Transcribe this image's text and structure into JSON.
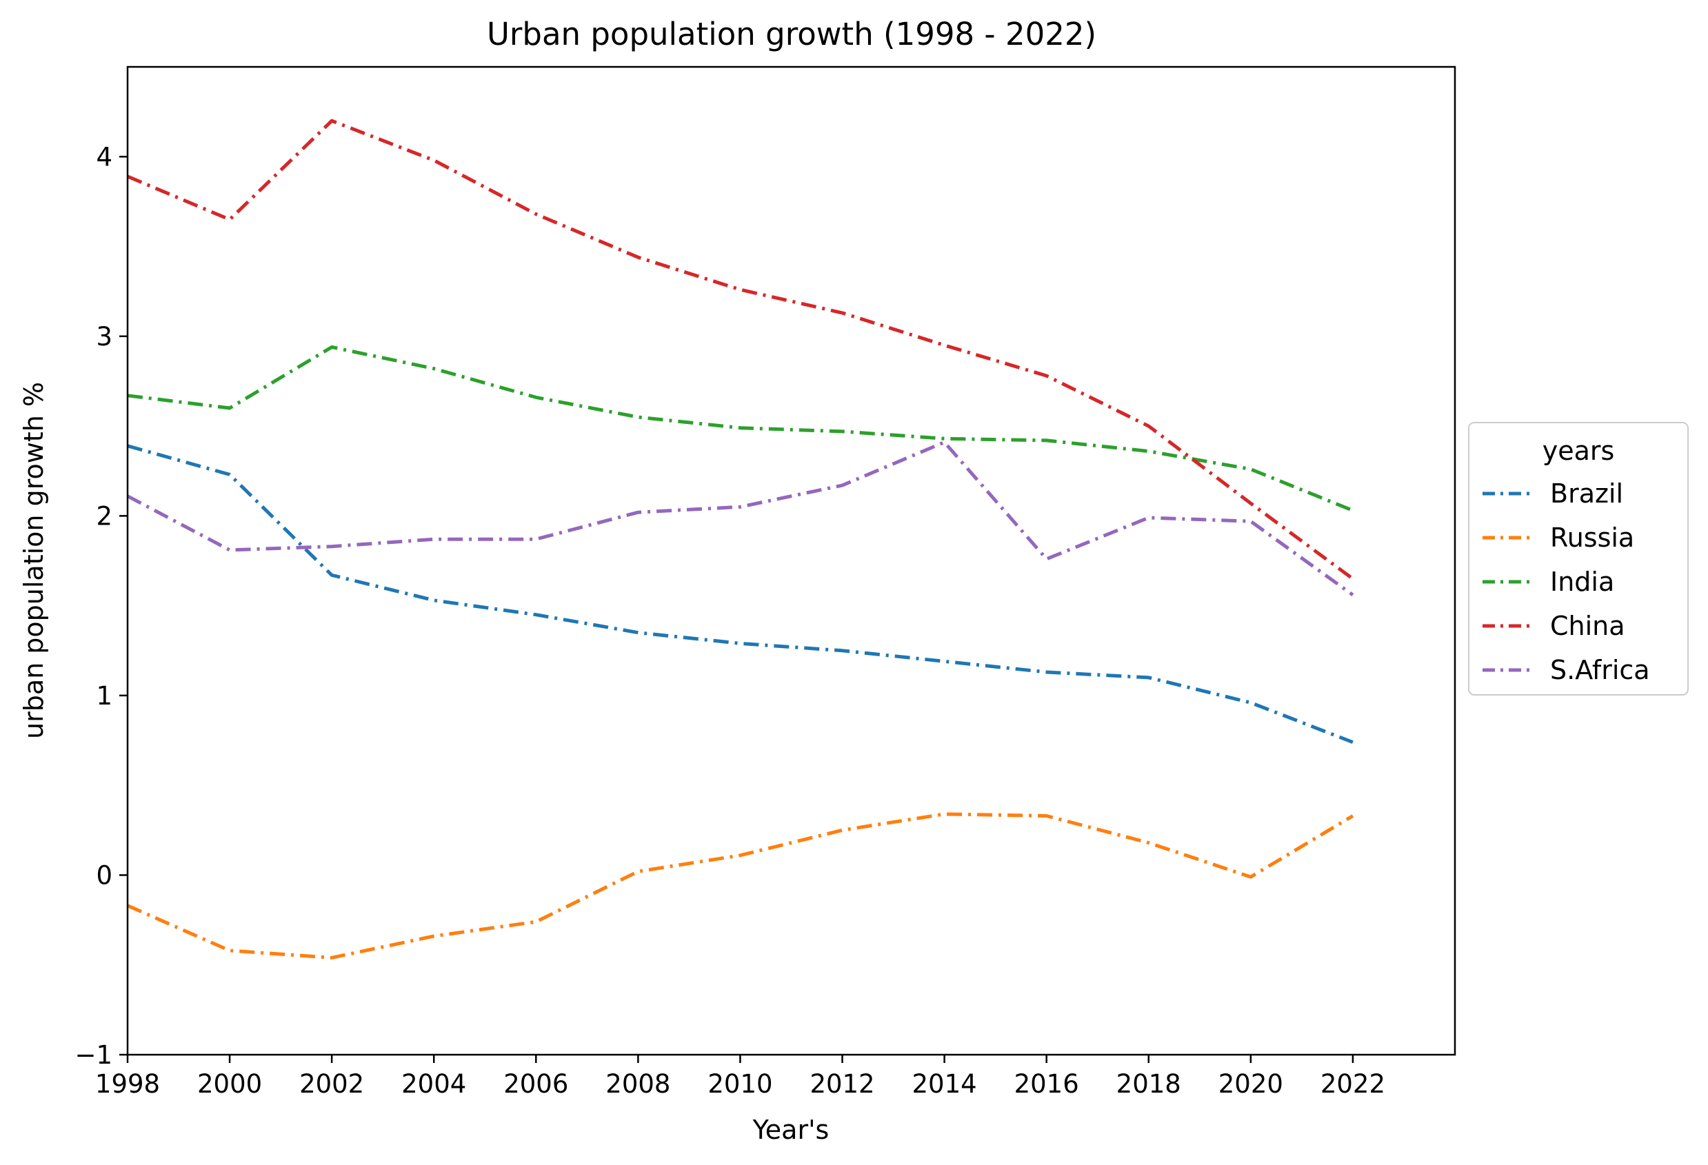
{
  "chart_data": {
    "type": "line",
    "title": "Urban population growth (1998 - 2022)",
    "xlabel": "Year's",
    "ylabel": "urban population growth %",
    "x": [
      1998,
      2000,
      2002,
      2004,
      2006,
      2008,
      2010,
      2012,
      2014,
      2016,
      2018,
      2020,
      2022
    ],
    "xticks": [
      "1998",
      "2000",
      "2002",
      "2004",
      "2006",
      "2008",
      "2010",
      "2012",
      "2014",
      "2016",
      "2018",
      "2020",
      "2022"
    ],
    "yticks": [
      "−1",
      "0",
      "1",
      "2",
      "3",
      "4"
    ],
    "xlim": [
      1998,
      2024
    ],
    "ylim": [
      -1,
      4.5
    ],
    "grid": false,
    "legend": {
      "title": "years",
      "position": "center-right-outside"
    },
    "series": [
      {
        "name": "Brazil",
        "color": "#1f77b4",
        "values": [
          2.39,
          2.23,
          1.67,
          1.53,
          1.45,
          1.35,
          1.29,
          1.25,
          1.19,
          1.13,
          1.1,
          0.96,
          0.74
        ]
      },
      {
        "name": "Russia",
        "color": "#ff7f0e",
        "values": [
          -0.17,
          -0.42,
          -0.46,
          -0.34,
          -0.26,
          0.02,
          0.11,
          0.25,
          0.34,
          0.33,
          0.18,
          -0.01,
          0.33
        ]
      },
      {
        "name": "India",
        "color": "#2ca02c",
        "values": [
          2.67,
          2.6,
          2.94,
          2.82,
          2.66,
          2.55,
          2.49,
          2.47,
          2.43,
          2.42,
          2.36,
          2.26,
          2.03
        ]
      },
      {
        "name": "China",
        "color": "#d62728",
        "values": [
          3.89,
          3.65,
          4.2,
          3.98,
          3.68,
          3.44,
          3.26,
          3.13,
          2.95,
          2.78,
          2.5,
          2.07,
          1.65
        ]
      },
      {
        "name": "S.Africa",
        "color": "#9467bd",
        "values": [
          2.11,
          1.81,
          1.83,
          1.87,
          1.87,
          2.02,
          2.05,
          2.17,
          2.41,
          1.76,
          1.99,
          1.97,
          1.56
        ]
      }
    ]
  }
}
